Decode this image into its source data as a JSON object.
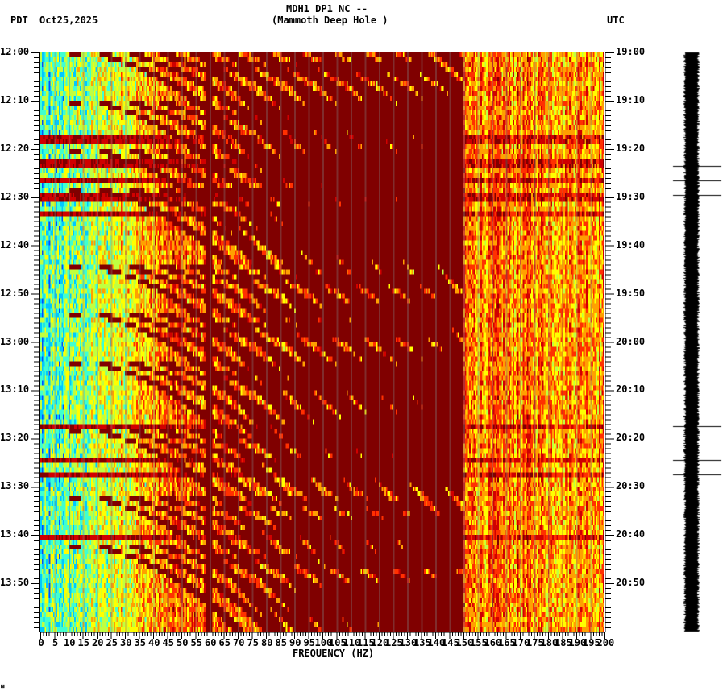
{
  "header": {
    "title_line1": "MDH1 DP1 NC --",
    "title_line2": "(Mammoth Deep Hole )",
    "left_tz": "PDT",
    "date": "Oct25,2025",
    "right_tz": "UTC"
  },
  "footer_mark": "⩏",
  "chart_data": {
    "type": "heatmap",
    "title": "MDH1 DP1 NC -- (Mammoth Deep Hole )",
    "subtitle": "Oct25,2025",
    "xlabel": "FREQUENCY (HZ)",
    "ylabel_left": "PDT",
    "ylabel_right": "UTC",
    "xlim": [
      0,
      200
    ],
    "x_ticks": [
      "0",
      "5",
      "10",
      "15",
      "20",
      "25",
      "30",
      "35",
      "40",
      "45",
      "50",
      "55",
      "60",
      "65",
      "70",
      "75",
      "80",
      "85",
      "90",
      "95",
      "100",
      "105",
      "110",
      "115",
      "120",
      "125",
      "130",
      "135",
      "140",
      "145",
      "150",
      "155",
      "160",
      "165",
      "170",
      "175",
      "180",
      "185",
      "190",
      "195",
      "200"
    ],
    "y_ticks_left": [
      "12:00",
      "12:10",
      "12:20",
      "12:30",
      "12:40",
      "12:50",
      "13:00",
      "13:10",
      "13:20",
      "13:30",
      "13:40",
      "13:50"
    ],
    "y_ticks_right": [
      "19:00",
      "19:10",
      "19:20",
      "19:30",
      "19:40",
      "19:50",
      "20:00",
      "20:10",
      "20:20",
      "20:30",
      "20:40",
      "20:50"
    ],
    "time_span_minutes": 120,
    "grid": {
      "vertical_every_hz": 5,
      "color": "#808080"
    },
    "colormap": [
      "#0050ff",
      "#00c8ff",
      "#40ffd0",
      "#c0ff40",
      "#ffff00",
      "#ffa000",
      "#ff3000",
      "#d00000",
      "#800000"
    ],
    "features": {
      "persistent_line_hz": 59.5,
      "low_freq_quiet_band_hz": [
        0,
        22
      ],
      "broadband_events_minutes": [
        17.5,
        22.5,
        26,
        29.5,
        33,
        77,
        84,
        87,
        100
      ],
      "chirp_tracks_start_minutes": [
        2,
        12,
        22,
        32,
        40,
        56,
        66,
        76,
        90,
        104,
        114
      ],
      "seismogram_spikes_minutes": [
        23.5,
        26.5,
        29.5,
        77.5,
        84.5,
        87.5
      ]
    }
  }
}
